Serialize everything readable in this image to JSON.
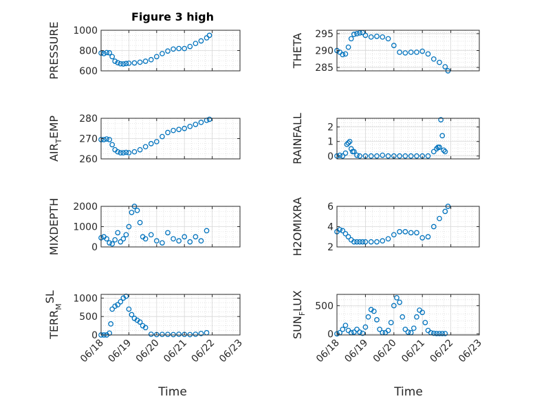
{
  "figure": {
    "title": "Figure 3 high",
    "xlabel": "Time"
  },
  "colors": {
    "marker": "#0072BD",
    "axis": "#262626",
    "grid": "#cfcfcf"
  },
  "chart_data": [
    {
      "type": "scatter",
      "id": "pressure",
      "ylabel": "PRESSURE",
      "ylim": [
        600,
        1000
      ],
      "yticks": [
        600,
        800,
        1000
      ],
      "xlim": [
        "06/18",
        "06/23"
      ],
      "xticks": [
        "06/18",
        "06/19",
        "06/20",
        "06/21",
        "06/22",
        "06/23"
      ],
      "grid": true,
      "x": [
        0.0,
        0.1,
        0.2,
        0.3,
        0.4,
        0.5,
        0.6,
        0.7,
        0.8,
        0.9,
        1.0,
        1.2,
        1.4,
        1.6,
        1.8,
        2.0,
        2.2,
        2.4,
        2.6,
        2.8,
        3.0,
        3.2,
        3.4,
        3.6,
        3.8,
        3.9
      ],
      "y": [
        775,
        770,
        780,
        778,
        740,
        695,
        680,
        670,
        668,
        672,
        675,
        678,
        685,
        695,
        710,
        740,
        770,
        795,
        815,
        820,
        820,
        840,
        870,
        895,
        925,
        950
      ]
    },
    {
      "type": "scatter",
      "id": "theta",
      "ylabel": "THETA",
      "ylim": [
        284,
        296
      ],
      "yticks": [
        285,
        290,
        295
      ],
      "xlim": [
        "06/18",
        "06/23"
      ],
      "xticks": [
        "06/18",
        "06/19",
        "06/20",
        "06/21",
        "06/22",
        "06/23"
      ],
      "grid": true,
      "x": [
        0.0,
        0.1,
        0.2,
        0.3,
        0.4,
        0.5,
        0.6,
        0.7,
        0.8,
        0.9,
        1.0,
        1.2,
        1.4,
        1.6,
        1.8,
        2.0,
        2.2,
        2.4,
        2.6,
        2.8,
        3.0,
        3.2,
        3.4,
        3.6,
        3.8,
        3.9
      ],
      "y": [
        290,
        289.5,
        288.8,
        289,
        291,
        293.5,
        294.8,
        295,
        295.2,
        295.3,
        294.5,
        294,
        294.2,
        294,
        293.5,
        291.5,
        289.5,
        289.3,
        289.5,
        289.5,
        289.8,
        289,
        287.5,
        286.5,
        285.2,
        284
      ]
    },
    {
      "type": "scatter",
      "id": "air_temp",
      "ylabel": "AIR",
      "ylabel_sub": "T",
      "ylabel_rest": "EMP",
      "ylim": [
        260,
        280
      ],
      "yticks": [
        260,
        270,
        280
      ],
      "xlim": [
        "06/18",
        "06/23"
      ],
      "xticks": [
        "06/18",
        "06/19",
        "06/20",
        "06/21",
        "06/22",
        "06/23"
      ],
      "grid": true,
      "x": [
        0.0,
        0.1,
        0.2,
        0.3,
        0.4,
        0.5,
        0.6,
        0.7,
        0.8,
        0.9,
        1.0,
        1.2,
        1.4,
        1.6,
        1.8,
        2.0,
        2.2,
        2.4,
        2.6,
        2.8,
        3.0,
        3.2,
        3.4,
        3.6,
        3.8,
        3.9
      ],
      "y": [
        269.5,
        269.5,
        269.8,
        269.5,
        267,
        264.5,
        263.5,
        263,
        263,
        263.2,
        263,
        263.5,
        264.5,
        266,
        267.5,
        268.5,
        271,
        273,
        274,
        274.5,
        275,
        276,
        277,
        278,
        279,
        279.5
      ]
    },
    {
      "type": "scatter",
      "id": "rainfall",
      "ylabel": "RAINFALL",
      "ylim": [
        -0.2,
        2.6
      ],
      "yticks": [
        0,
        1,
        2
      ],
      "xlim": [
        "06/18",
        "06/23"
      ],
      "xticks": [
        "06/18",
        "06/19",
        "06/20",
        "06/21",
        "06/22",
        "06/23"
      ],
      "grid": true,
      "x": [
        0.0,
        0.1,
        0.2,
        0.3,
        0.35,
        0.4,
        0.45,
        0.5,
        0.55,
        0.6,
        0.7,
        0.8,
        1.0,
        1.2,
        1.4,
        1.6,
        1.8,
        2.0,
        2.2,
        2.4,
        2.6,
        2.8,
        3.0,
        3.2,
        3.4,
        3.5,
        3.55,
        3.6,
        3.65,
        3.7,
        3.75,
        3.8
      ],
      "y": [
        0,
        0.05,
        0,
        0.2,
        0.8,
        0.9,
        1.0,
        0.5,
        0.3,
        0.3,
        0.05,
        0,
        0,
        0,
        0,
        0.05,
        0,
        0,
        0,
        0,
        0,
        0,
        0,
        0,
        0.3,
        0.5,
        0.6,
        0.6,
        2.5,
        1.4,
        0.4,
        0.3
      ]
    },
    {
      "type": "scatter",
      "id": "mixdepth",
      "ylabel": "MIXDEPTH",
      "ylim": [
        0,
        2000
      ],
      "yticks": [
        0,
        1000,
        2000
      ],
      "xlim": [
        "06/18",
        "06/23"
      ],
      "xticks": [
        "06/18",
        "06/19",
        "06/20",
        "06/21",
        "06/22",
        "06/23"
      ],
      "grid": true,
      "x": [
        0.0,
        0.1,
        0.2,
        0.3,
        0.4,
        0.5,
        0.6,
        0.7,
        0.8,
        0.9,
        1.0,
        1.1,
        1.2,
        1.3,
        1.4,
        1.5,
        1.6,
        1.8,
        2.0,
        2.2,
        2.4,
        2.6,
        2.8,
        3.0,
        3.2,
        3.4,
        3.6,
        3.8
      ],
      "y": [
        450,
        500,
        400,
        200,
        150,
        350,
        700,
        250,
        400,
        600,
        1000,
        1700,
        2000,
        1800,
        1200,
        500,
        400,
        600,
        300,
        200,
        700,
        400,
        300,
        500,
        250,
        500,
        300,
        800
      ]
    },
    {
      "type": "scatter",
      "id": "h2omixra",
      "ylabel": "H2OMIXRA",
      "ylim": [
        2,
        6
      ],
      "yticks": [
        2,
        4,
        6
      ],
      "xlim": [
        "06/18",
        "06/23"
      ],
      "xticks": [
        "06/18",
        "06/19",
        "06/20",
        "06/21",
        "06/22",
        "06/23"
      ],
      "grid": true,
      "x": [
        0.0,
        0.1,
        0.2,
        0.3,
        0.4,
        0.5,
        0.6,
        0.7,
        0.8,
        0.9,
        1.0,
        1.2,
        1.4,
        1.6,
        1.8,
        2.0,
        2.2,
        2.4,
        2.6,
        2.8,
        3.0,
        3.2,
        3.4,
        3.6,
        3.8,
        3.9
      ],
      "y": [
        3.5,
        3.7,
        3.6,
        3.3,
        3.0,
        2.7,
        2.5,
        2.5,
        2.5,
        2.5,
        2.5,
        2.5,
        2.5,
        2.6,
        2.8,
        3.2,
        3.5,
        3.5,
        3.4,
        3.4,
        2.9,
        3.0,
        4.0,
        4.8,
        5.5,
        6.0
      ]
    },
    {
      "type": "scatter",
      "id": "terr_msl",
      "ylabel": "TERR",
      "ylabel_sub": "M",
      "ylabel_sup": "SL",
      "ylim": [
        0,
        1100
      ],
      "yticks": [
        0,
        500,
        1000
      ],
      "xlim": [
        "06/18",
        "06/23"
      ],
      "xticks": [
        "06/18",
        "06/19",
        "06/20",
        "06/21",
        "06/22",
        "06/23"
      ],
      "grid": true,
      "x": [
        0.0,
        0.1,
        0.2,
        0.3,
        0.35,
        0.4,
        0.5,
        0.6,
        0.7,
        0.8,
        0.9,
        1.0,
        1.1,
        1.2,
        1.3,
        1.4,
        1.5,
        1.6,
        1.8,
        2.0,
        2.2,
        2.4,
        2.6,
        2.8,
        3.0,
        3.2,
        3.4,
        3.6,
        3.8
      ],
      "y": [
        0,
        0,
        0,
        50,
        300,
        700,
        780,
        820,
        900,
        1000,
        1050,
        700,
        550,
        450,
        400,
        350,
        250,
        200,
        20,
        10,
        15,
        15,
        10,
        20,
        15,
        10,
        20,
        40,
        60
      ]
    },
    {
      "type": "scatter",
      "id": "sun_flux",
      "ylabel": "SUN",
      "ylabel_sub": "F",
      "ylabel_rest": "LUX",
      "ylim": [
        -20,
        700
      ],
      "yticks": [
        0,
        500
      ],
      "xlim": [
        "06/18",
        "06/23"
      ],
      "xticks": [
        "06/18",
        "06/19",
        "06/20",
        "06/21",
        "06/22",
        "06/23"
      ],
      "grid": true,
      "x": [
        0.0,
        0.1,
        0.2,
        0.3,
        0.4,
        0.5,
        0.6,
        0.7,
        0.8,
        0.9,
        1.0,
        1.1,
        1.2,
        1.3,
        1.4,
        1.5,
        1.6,
        1.7,
        1.8,
        1.9,
        2.0,
        2.1,
        2.2,
        2.3,
        2.4,
        2.5,
        2.6,
        2.7,
        2.8,
        2.9,
        3.0,
        3.1,
        3.2,
        3.3,
        3.4,
        3.5,
        3.6,
        3.7,
        3.8
      ],
      "y": [
        0,
        20,
        80,
        150,
        60,
        20,
        30,
        80,
        30,
        10,
        120,
        300,
        430,
        400,
        250,
        80,
        20,
        20,
        60,
        200,
        500,
        640,
        560,
        300,
        80,
        30,
        20,
        100,
        300,
        420,
        380,
        200,
        60,
        20,
        10,
        5,
        5,
        5,
        5
      ]
    }
  ]
}
